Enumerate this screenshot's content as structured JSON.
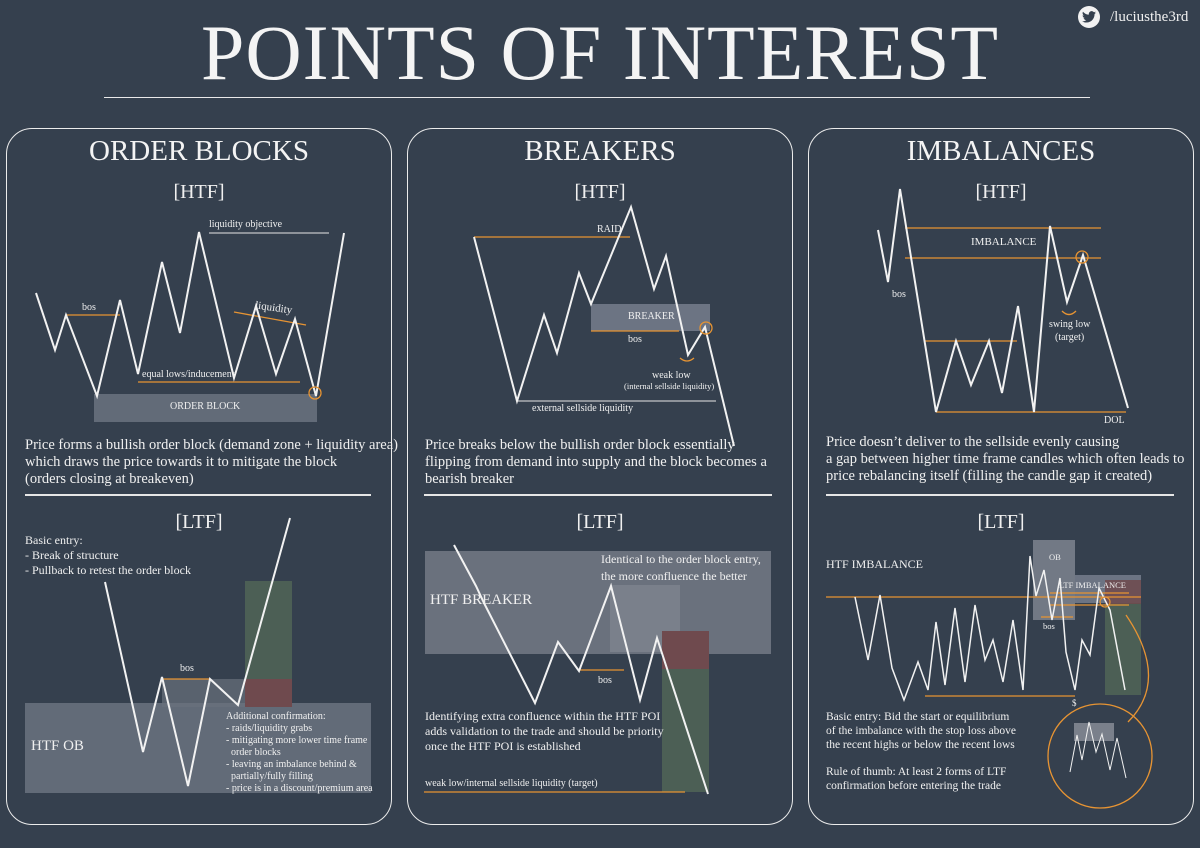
{
  "header": {
    "title": "POINTS OF INTEREST",
    "twitter_handle": "/luciusthe3rd",
    "icon": "twitter-bird-icon"
  },
  "colors": {
    "background": "#35404e",
    "line": "#f2f2f2",
    "accent_orange": "#e79433",
    "zone_gray": "#6c7483",
    "zone_green": "#4c5f55",
    "zone_red": "#6f4a4e"
  },
  "order_blocks": {
    "title": "ORDER BLOCKS",
    "htf": "[HTF]",
    "ltf": "[LTF]",
    "labels": {
      "liquidity_objective": "liquidity objective",
      "bos": "bos",
      "liquidity": "liquidity",
      "equal_lows": "equal lows/inducement",
      "order_block": "ORDER BLOCK",
      "ltf_bos": "bos",
      "htf_ob": "HTF OB"
    },
    "description": [
      "Price forms a bullish order block (demand zone + liquidity area)",
      "which draws the price towards it to mitigate the block",
      "(orders closing at breakeven)"
    ],
    "basic_entry": [
      "Basic entry:",
      "- Break of structure",
      "- Pullback to retest the order block"
    ],
    "confirmation": [
      "Additional confirmation:",
      "- raids/liquidity grabs",
      "- mitigating more lower time frame",
      "  order blocks",
      "- leaving an imbalance behind &",
      "  partially/fully filling",
      "- price is in a discount/premium area"
    ]
  },
  "breakers": {
    "title": "BREAKERS",
    "htf": "[HTF]",
    "ltf": "[LTF]",
    "labels": {
      "raid": "RAID",
      "breaker": "BREAKER",
      "bos": "bos",
      "weak_low": "weak low",
      "weak_low_sub": "(internal sellside liquidity)",
      "external_ssl": "external sellside liquidity",
      "htf_breaker": "HTF BREAKER",
      "ltf_bos": "bos",
      "weak_low_target": "weak low/internal sellside liquidity (target)"
    },
    "description": [
      "Price breaks below the bullish order block essentially",
      "flipping from demand into supply and the block becomes a",
      "bearish breaker"
    ],
    "identical": [
      "Identical to the order block entry,",
      "the more confluence the better"
    ],
    "confluence": [
      "Identifying extra confluence within the HTF POI",
      "adds validation to the trade and should be priority",
      "once the HTF POI is established"
    ]
  },
  "imbalances": {
    "title": "IMBALANCES",
    "htf": "[HTF]",
    "ltf": "[LTF]",
    "labels": {
      "imbalance": "IMBALANCE",
      "bos": "bos",
      "swing_low": "swing low",
      "target": "(target)",
      "dol": "DOL",
      "htf_imbalance": "HTF IMBALANCE",
      "ob": "OB",
      "ltf_imbalance": "LTF IMBALANCE",
      "ltf_bos": "bos",
      "dollar": "$"
    },
    "description": [
      "Price doesn’t deliver to the sellside evenly causing",
      "a gap between higher time frame candles which often leads to",
      "price rebalancing itself  (filling the candle gap it created)"
    ],
    "entry": [
      "Basic entry: Bid the start or equilibrium",
      "of the imbalance with the stop loss above",
      "the recent highs or below the recent lows"
    ],
    "rule": [
      "Rule of thumb: At least 2 forms of LTF",
      "confirmation before entering the trade"
    ]
  }
}
